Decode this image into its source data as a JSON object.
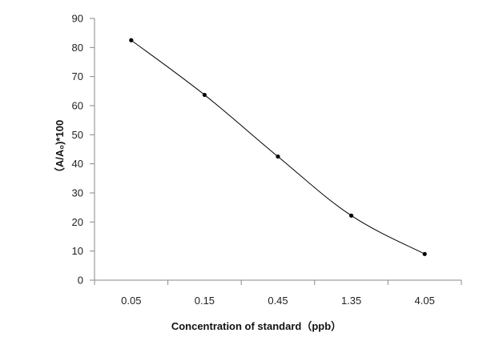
{
  "chart_data": {
    "type": "line",
    "categories": [
      "0.05",
      "0.15",
      "0.45",
      "1.35",
      "4.05"
    ],
    "series": [
      {
        "values": [
          82.5,
          63.7,
          42.5,
          22.2,
          9.0
        ],
        "color": "#000000"
      }
    ],
    "xlabel": "Concentration of standard（ppb）",
    "ylabel": "（A/A₀)*100",
    "ylim": [
      0,
      90
    ],
    "yticks": [
      0,
      10,
      20,
      30,
      40,
      50,
      60,
      70,
      80,
      90
    ],
    "grid": false,
    "smooth": true,
    "axis_color": "#888888"
  }
}
